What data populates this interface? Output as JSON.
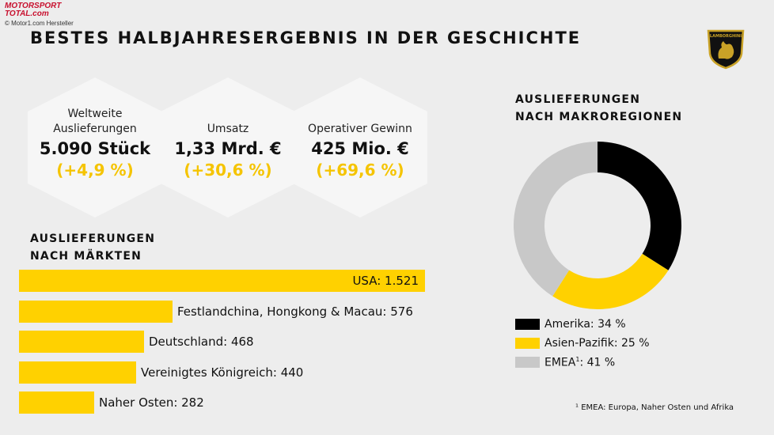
{
  "source": {
    "logo_line1": "MOTORSPORT",
    "logo_line2": "TOTAL.com",
    "credit": "© Motor1.com Hersteller"
  },
  "title": "BESTES HALBJAHRESERGEBNIS IN DER GESCHICHTE",
  "emblem_text": "LAMBORGHINI",
  "kpis": [
    {
      "label": "Weltweite Auslieferungen",
      "value": "5.090 Stück",
      "change": "(+4,9 %)"
    },
    {
      "label": "Umsatz",
      "value": "1,33 Mrd. €",
      "change": "(+30,6 %)"
    },
    {
      "label": "Operativer Gewinn",
      "value": "425 Mio. €",
      "change": "(+69,6 %)"
    }
  ],
  "colors": {
    "accent_yellow": "#ffd100",
    "change_yellow": "#f5c400",
    "amerika": "#000000",
    "asien": "#ffd100",
    "emea": "#c8c8c8",
    "background": "#ededed",
    "hex": "#f6f6f6"
  },
  "chart_data": [
    {
      "type": "bar",
      "title_line1": "AUSLIEFERUNGEN",
      "title_line2": "NACH MÄRKTEN",
      "orientation": "horizontal",
      "categories": [
        "USA",
        "Festlandchina, Hongkong & Macau",
        "Deutschland",
        "Vereinigtes Königreich",
        "Naher Osten"
      ],
      "values": [
        1521,
        576,
        468,
        440,
        282
      ],
      "labels": [
        "USA: 1.521",
        "Festlandchina, Hongkong & Macau: 576",
        "Deutschland: 468",
        "Vereinigtes Königreich: 440",
        "Naher Osten: 282"
      ]
    },
    {
      "type": "pie",
      "variant": "donut",
      "title_line1": "AUSLIEFERUNGEN",
      "title_line2": "NACH MAKROREGIONEN",
      "slices": [
        {
          "name": "Amerika",
          "value": 34,
          "label": "Amerika: 34 %",
          "color": "#000000"
        },
        {
          "name": "Asien-Pazifik",
          "value": 25,
          "label": "Asien-Pazifik: 25 %",
          "color": "#ffd100"
        },
        {
          "name": "EMEA",
          "value": 41,
          "label": "EMEA",
          "label_sup": "1",
          "label_suffix": ": 41 %",
          "color": "#c8c8c8"
        }
      ],
      "footnote": "¹ EMEA: Europa, Naher Osten und Afrika"
    }
  ]
}
